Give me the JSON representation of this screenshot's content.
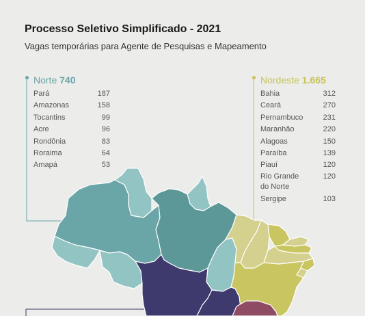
{
  "header": {
    "title": "Processo Seletivo Simplificado - 2021",
    "subtitle": "Vagas temporárias para Agente de Pesquisas e Mapeamento"
  },
  "regions": {
    "norte": {
      "name": "Norte",
      "total": "740",
      "color": "#6aa5a8",
      "states": [
        {
          "name": "Pará",
          "value": "187"
        },
        {
          "name": "Amazonas",
          "value": "158"
        },
        {
          "name": "Tocantins",
          "value": "99"
        },
        {
          "name": "Acre",
          "value": "96"
        },
        {
          "name": "Rondônia",
          "value": "83"
        },
        {
          "name": "Roraima",
          "value": "64"
        },
        {
          "name": "Amapá",
          "value": "53"
        }
      ]
    },
    "nordeste": {
      "name": "Nordeste",
      "total": "1.665",
      "color": "#c7c35a",
      "states": [
        {
          "name": "Bahia",
          "value": "312"
        },
        {
          "name": "Ceará",
          "value": "270"
        },
        {
          "name": "Pernambuco",
          "value": "231"
        },
        {
          "name": "Maranhão",
          "value": "220"
        },
        {
          "name": "Alagoas",
          "value": "150"
        },
        {
          "name": "Paraíba",
          "value": "139"
        },
        {
          "name": "Piauí",
          "value": "120"
        },
        {
          "name": "Rio Grande do Norte",
          "value": "120"
        },
        {
          "name": "Sergipe",
          "value": "103"
        }
      ]
    }
  },
  "colors": {
    "norte_light": "#93c4c4",
    "norte_dark": "#5d9899",
    "nordeste_light": "#d4d08e",
    "nordeste_dark": "#c9c560",
    "centro_oeste": "#3e3a6e",
    "sudeste": "#8f4b63",
    "background": "#ececea"
  }
}
